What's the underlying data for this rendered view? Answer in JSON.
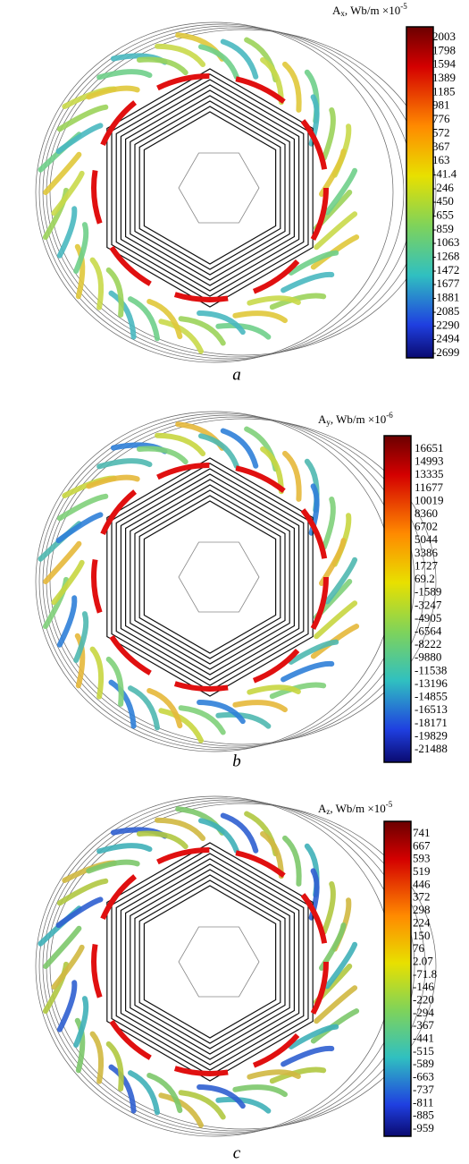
{
  "panels": [
    {
      "label": "a",
      "colorbar": {
        "symbol": "A",
        "subscript": "x",
        "unit": ", Wb/m ×10",
        "exponent": "-5",
        "ticks": [
          2003,
          1798,
          1594,
          1389,
          1185,
          981,
          776,
          572,
          367,
          163,
          -41.4,
          -246,
          -450,
          -655,
          -859,
          -1063,
          -1268,
          -1472,
          -1677,
          -1881,
          -2085,
          -2290,
          -2494,
          -2699
        ]
      }
    },
    {
      "label": "b",
      "colorbar": {
        "symbol": "A",
        "subscript": "y",
        "unit": ", Wb/m ×10",
        "exponent": "-6",
        "ticks": [
          16651,
          14993,
          13335,
          11677,
          10019,
          8360,
          6702,
          5044,
          3386,
          1727,
          69.2,
          -1589,
          -3247,
          -4905,
          -6564,
          -8222,
          -9880,
          -11538,
          -13196,
          -14855,
          -16513,
          -18171,
          -19829,
          -21488
        ]
      }
    },
    {
      "label": "c",
      "colorbar": {
        "symbol": "A",
        "subscript": "z",
        "unit": ", Wb/m ×10",
        "exponent": "-5",
        "ticks": [
          741,
          667,
          593,
          519,
          446,
          372,
          298,
          224,
          150,
          76,
          2.07,
          -71.8,
          -146,
          -220,
          -294,
          -367,
          -441,
          -515,
          -589,
          -663,
          -737,
          -811,
          -885,
          -959
        ]
      }
    }
  ]
}
